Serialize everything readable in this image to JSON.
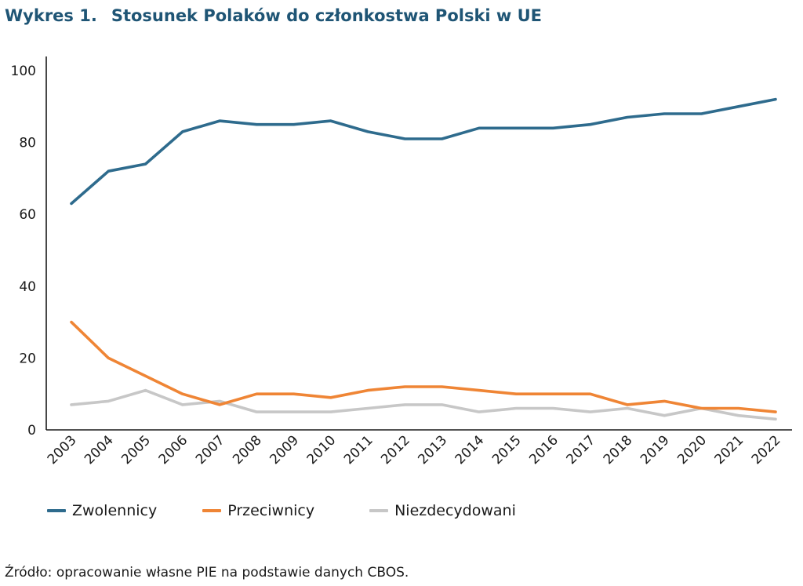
{
  "figure": {
    "number": "Wykres 1.",
    "title": "Stosunek Polaków do członkostwa Polski w UE",
    "source": "Źródło: opracowanie własne PIE na podstawie danych CBOS."
  },
  "chart_data": {
    "type": "line",
    "title": "Stosunek Polaków do członkostwa Polski w UE",
    "xlabel": "",
    "ylabel": "",
    "ylim": [
      0,
      100
    ],
    "yticks": [
      0,
      20,
      40,
      60,
      80,
      100
    ],
    "grid": false,
    "legend_position": "bottom",
    "categories": [
      "2003",
      "2004",
      "2005",
      "2006",
      "2007",
      "2008",
      "2009",
      "2010",
      "2011",
      "2012",
      "2013",
      "2014",
      "2015",
      "2016",
      "2017",
      "2018",
      "2019",
      "2020",
      "2021",
      "2022"
    ],
    "series": [
      {
        "name": "Zwolennicy",
        "color": "#2e6b8d",
        "values": [
          63,
          72,
          74,
          83,
          86,
          85,
          85,
          86,
          83,
          81,
          81,
          84,
          84,
          84,
          85,
          87,
          88,
          88,
          90,
          92
        ]
      },
      {
        "name": "Przeciwnicy",
        "color": "#ef8535",
        "values": [
          30,
          20,
          15,
          10,
          7,
          10,
          10,
          9,
          11,
          12,
          12,
          11,
          10,
          10,
          10,
          7,
          8,
          6,
          6,
          5
        ]
      },
      {
        "name": "Niezdecydowani",
        "color": "#c7c7c7",
        "values": [
          7,
          8,
          11,
          7,
          8,
          5,
          5,
          5,
          6,
          7,
          7,
          5,
          6,
          6,
          5,
          6,
          4,
          6,
          4,
          3
        ]
      }
    ]
  }
}
